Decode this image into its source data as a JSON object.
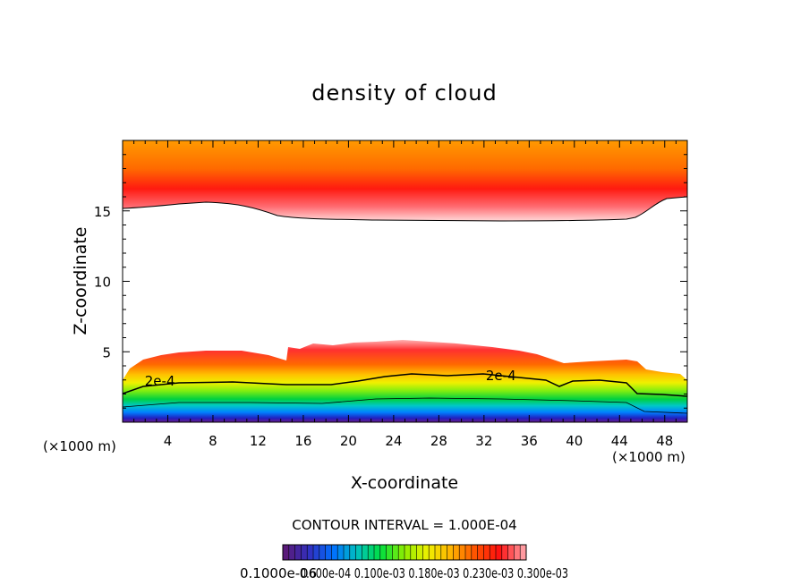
{
  "chart_data": {
    "type": "heatmap",
    "title": "density of cloud",
    "xlabel": "X-coordinate",
    "ylabel": "Z-coordinate",
    "x_unit_label": "(×1000 m)",
    "xlim": [
      0,
      50
    ],
    "ylim": [
      0,
      20
    ],
    "x_ticks": [
      "4",
      "8",
      "12",
      "16",
      "20",
      "24",
      "28",
      "32",
      "36",
      "40",
      "44",
      "48"
    ],
    "x_tick_values": [
      4,
      8,
      12,
      16,
      20,
      24,
      28,
      32,
      36,
      40,
      44,
      48
    ],
    "y_ticks": [
      "5",
      "10",
      "15"
    ],
    "y_tick_values": [
      5,
      10,
      15
    ],
    "contour_labels": [
      {
        "text": "2e-4",
        "x": 3.3,
        "z": 2.6
      },
      {
        "text": "2e-4",
        "x": 33.5,
        "z": 3.0
      }
    ],
    "contour_interval_text": "CONTOUR INTERVAL = 1.000E-04",
    "colorbar_labels_text": "0.1000e-06",
    "colorbar_labels_overlap_text": "0.600e-04 0.100e-03 0.180e-03 0.230e-03 0.300e-03",
    "colormap": [
      "#5a1a7a",
      "#3030c0",
      "#0070ff",
      "#00c0c0",
      "#00e040",
      "#90ee00",
      "#f0f000",
      "#ffb000",
      "#ff5000",
      "#ff1010",
      "#ff9aa0"
    ],
    "grid": false
  }
}
